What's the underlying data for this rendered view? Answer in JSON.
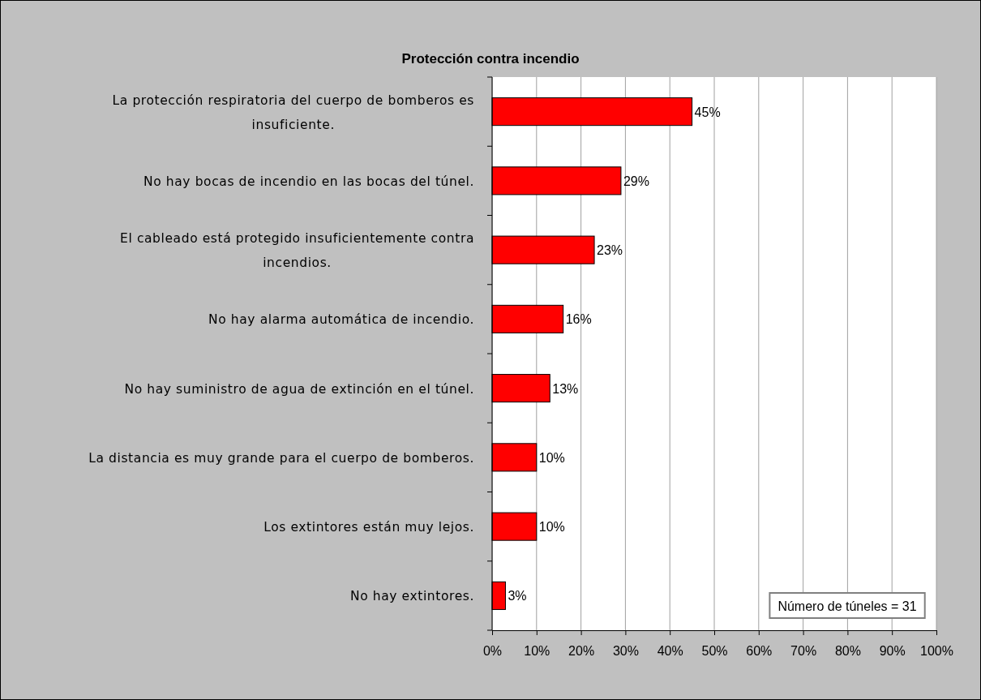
{
  "chart_data": {
    "type": "bar",
    "orientation": "horizontal",
    "title": "Protección contra incendio",
    "categories": [
      "La protección respiratoria del cuerpo de bomberos es insuficiente.",
      "No hay bocas de incendio en las bocas del túnel.",
      "El cableado está protegido insuficientemente contra incendios.",
      "No hay alarma automática de incendio.",
      "No hay suministro de agua de extinción en el túnel.",
      "La distancia es muy grande para el cuerpo de bomberos.",
      "Los extintores están muy lejos.",
      "No hay extintores."
    ],
    "values": [
      45,
      29,
      23,
      16,
      13,
      10,
      10,
      3
    ],
    "value_labels": [
      "45%",
      "29%",
      "23%",
      "16%",
      "13%",
      "10%",
      "10%",
      "3%"
    ],
    "color": "#ff0000",
    "xlim": [
      0,
      100
    ],
    "xticks": [
      {
        "value": 0,
        "label": "0%"
      },
      {
        "value": 10,
        "label": "10%"
      },
      {
        "value": 20,
        "label": "20%"
      },
      {
        "value": 30,
        "label": "30%"
      },
      {
        "value": 40,
        "label": "40%"
      },
      {
        "value": 50,
        "label": "50%"
      },
      {
        "value": 60,
        "label": "60%"
      },
      {
        "value": 70,
        "label": "70%"
      },
      {
        "value": 80,
        "label": "80%"
      },
      {
        "value": 90,
        "label": "90%"
      },
      {
        "value": 100,
        "label": "100%"
      }
    ],
    "grid": "x",
    "annotations": [
      "Número de túneles = 31"
    ]
  }
}
